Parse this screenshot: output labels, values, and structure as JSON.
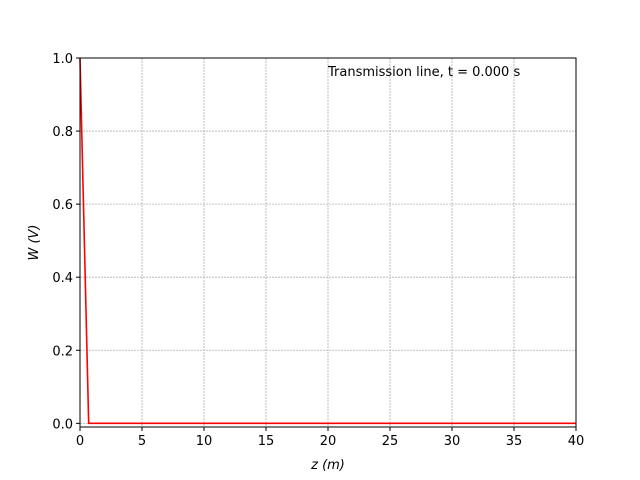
{
  "chart_data": {
    "type": "line",
    "annotation": "Transmission line, t = 0.000 s",
    "xlabel": "z (m)",
    "ylabel": "W (V)",
    "xlim": [
      0,
      40
    ],
    "ylim": [
      -0.01,
      1.0
    ],
    "x_ticks": [
      0,
      5,
      10,
      15,
      20,
      25,
      30,
      35,
      40
    ],
    "y_ticks": [
      0.0,
      0.2,
      0.4,
      0.6,
      0.8,
      1.0
    ],
    "x_tick_labels": [
      "0",
      "5",
      "10",
      "15",
      "20",
      "25",
      "30",
      "35",
      "40"
    ],
    "y_tick_labels": [
      "0.0",
      "0.2",
      "0.4",
      "0.6",
      "0.8",
      "1.0"
    ],
    "grid": true,
    "series": [
      {
        "color": "#ff0000",
        "x": [
          0,
          0.7,
          40
        ],
        "y": [
          1.0,
          0.0,
          0.0
        ]
      }
    ]
  }
}
